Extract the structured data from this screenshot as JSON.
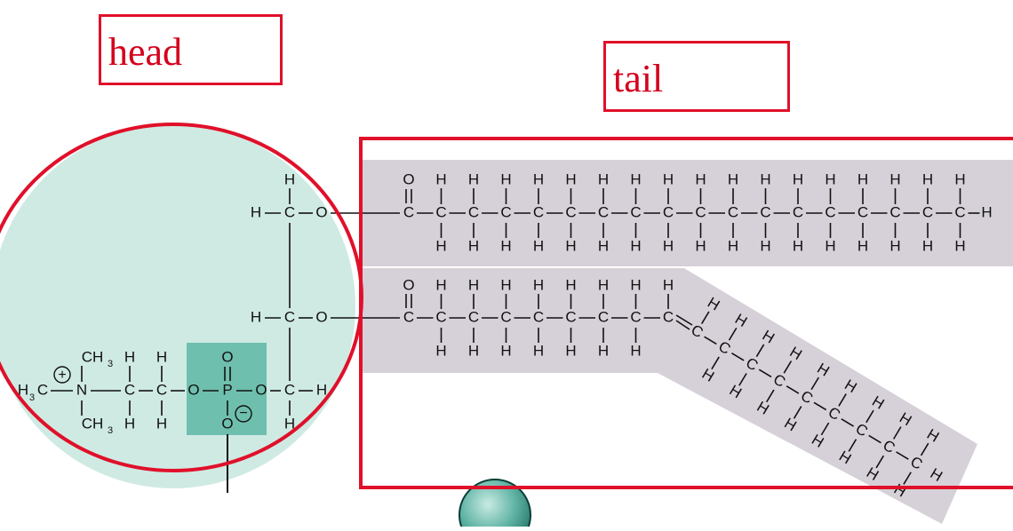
{
  "labels": {
    "head": "head",
    "tail": "tail"
  },
  "colors": {
    "annotation_red": "#e0102a",
    "head_region": "#cfeae3",
    "phosphate_box": "#6fbfae",
    "tail_band": "#d6d1d8",
    "sphere": "#5fb3a4"
  },
  "chemistry": {
    "carbon": "C",
    "hydrogen": "H",
    "oxygen": "O",
    "nitrogen": "N",
    "phosphorus": "P",
    "methyl": "CH",
    "methyl_subscript": "3",
    "positive_charge": "+",
    "negative_charge": "−",
    "chain1_carbon_count": 18,
    "chain2_saturated_carbon_count": 9,
    "chain2_kinked_carbon_count": 9
  }
}
